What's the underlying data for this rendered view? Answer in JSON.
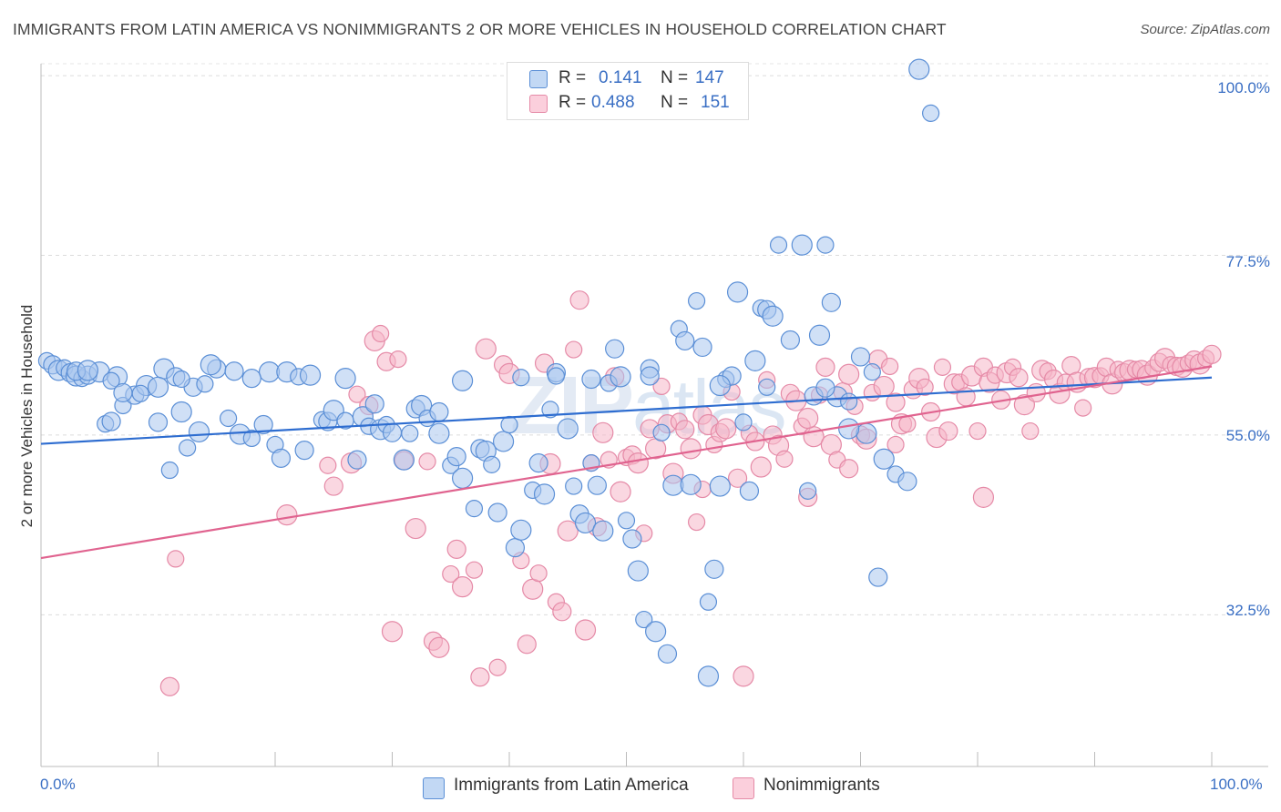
{
  "title": "IMMIGRANTS FROM LATIN AMERICA VS NONIMMIGRANTS 2 OR MORE VEHICLES IN HOUSEHOLD CORRELATION CHART",
  "source": "Source: ZipAtlas.com",
  "watermark": {
    "bold": "ZIP",
    "light": "atlas"
  },
  "stats": [
    {
      "r_label": "R =",
      "r_value": "0.141",
      "n_label": "N =",
      "n_value": "147"
    },
    {
      "r_label": "R =",
      "r_value": "0.488",
      "n_label": "N =",
      "n_value": "151"
    }
  ],
  "colors": {
    "blue_fill": "#a9c7ef",
    "blue_stroke": "#5b8fd6",
    "blue_line": "#2e6dd0",
    "pink_fill": "#f6b6c9",
    "pink_stroke": "#e58aa7",
    "pink_line": "#e0638f",
    "tick_text": "#3a6fc4"
  },
  "chart_data": {
    "type": "scatter",
    "title": "IMMIGRANTS FROM LATIN AMERICA VS NONIMMIGRANTS 2 OR MORE VEHICLES IN HOUSEHOLD CORRELATION CHART",
    "xlabel": "",
    "ylabel": "2 or more Vehicles in Household",
    "xlim": [
      0,
      100
    ],
    "ylim": [
      13.5,
      101.5
    ],
    "x_tick_labels": [
      "0.0%",
      "100.0%"
    ],
    "y_ticks": [
      32.5,
      55.0,
      77.5,
      100.0
    ],
    "y_tick_labels": [
      "32.5%",
      "55.0%",
      "77.5%",
      "100.0%"
    ],
    "grid": "horizontal dashed",
    "legend_position": "bottom-center",
    "series": [
      {
        "name": "Immigrants from Latin America",
        "r": 0.141,
        "n": 147,
        "trend": [
          [
            0,
            53.9
          ],
          [
            100,
            62.2
          ]
        ],
        "points": [
          [
            0.5,
            64.3
          ],
          [
            1,
            63.8
          ],
          [
            1.5,
            63.1
          ],
          [
            2,
            63.4
          ],
          [
            2.5,
            62.8
          ],
          [
            3,
            62.4
          ],
          [
            3.5,
            62.1
          ],
          [
            4,
            62.5
          ],
          [
            5,
            62.9
          ],
          [
            5.5,
            56.4
          ],
          [
            6,
            56.7
          ],
          [
            6.5,
            62.3
          ],
          [
            7,
            58.7
          ],
          [
            8,
            60.0
          ],
          [
            9,
            61.2
          ],
          [
            8.5,
            60.2
          ],
          [
            10,
            56.6
          ],
          [
            10.5,
            63.3
          ],
          [
            11,
            50.6
          ],
          [
            11.5,
            62.3
          ],
          [
            12,
            57.9
          ],
          [
            12.5,
            53.4
          ],
          [
            13,
            61.0
          ],
          [
            13.5,
            55.4
          ],
          [
            14,
            61.4
          ],
          [
            15,
            63.3
          ],
          [
            14.5,
            63.8
          ],
          [
            16,
            57.1
          ],
          [
            16.5,
            63.0
          ],
          [
            17,
            55.1
          ],
          [
            18,
            54.6
          ],
          [
            19,
            56.3
          ],
          [
            19.5,
            62.9
          ],
          [
            20,
            53.8
          ],
          [
            20.5,
            52.1
          ],
          [
            21,
            62.9
          ],
          [
            22,
            62.3
          ],
          [
            22.5,
            53.1
          ],
          [
            23,
            62.5
          ],
          [
            24,
            56.9
          ],
          [
            24.5,
            56.7
          ],
          [
            25,
            58.1
          ],
          [
            26,
            56.8
          ],
          [
            27,
            51.9
          ],
          [
            27.5,
            57.3
          ],
          [
            28,
            56.1
          ],
          [
            28.5,
            58.9
          ],
          [
            29,
            55.7
          ],
          [
            29.5,
            56.3
          ],
          [
            30,
            55.3
          ],
          [
            31,
            51.9
          ],
          [
            31.5,
            55.2
          ],
          [
            32,
            58.3
          ],
          [
            32.5,
            58.7
          ],
          [
            33,
            57.1
          ],
          [
            34,
            57.9
          ],
          [
            34,
            55.2
          ],
          [
            35,
            51.2
          ],
          [
            35.5,
            52.3
          ],
          [
            36,
            49.6
          ],
          [
            37,
            45.8
          ],
          [
            37.5,
            53.3
          ],
          [
            38,
            53.0
          ],
          [
            38.5,
            51.3
          ],
          [
            39,
            45.3
          ],
          [
            39.5,
            54.2
          ],
          [
            40,
            56.3
          ],
          [
            40.5,
            40.9
          ],
          [
            41,
            43.1
          ],
          [
            42,
            48.1
          ],
          [
            42.5,
            51.5
          ],
          [
            43,
            47.6
          ],
          [
            43.5,
            58.2
          ],
          [
            44,
            62.8
          ],
          [
            45,
            55.8
          ],
          [
            45.5,
            48.6
          ],
          [
            46,
            45.1
          ],
          [
            46.5,
            44.0
          ],
          [
            47,
            51.5
          ],
          [
            47.5,
            48.7
          ],
          [
            48,
            43.0
          ],
          [
            48.5,
            61.5
          ],
          [
            49,
            65.8
          ],
          [
            49.5,
            62.3
          ],
          [
            50,
            44.3
          ],
          [
            50.5,
            42.0
          ],
          [
            51,
            38.0
          ],
          [
            51.5,
            31.9
          ],
          [
            52,
            63.3
          ],
          [
            52.5,
            30.4
          ],
          [
            53,
            55.3
          ],
          [
            53.5,
            27.6
          ],
          [
            54,
            48.7
          ],
          [
            54.5,
            68.3
          ],
          [
            55,
            66.8
          ],
          [
            55.5,
            48.8
          ],
          [
            56,
            71.8
          ],
          [
            56.5,
            66.0
          ],
          [
            57,
            24.8
          ],
          [
            57,
            34.1
          ],
          [
            57.5,
            38.2
          ],
          [
            58,
            48.6
          ],
          [
            58.5,
            62.0
          ],
          [
            59,
            62.4
          ],
          [
            59.5,
            72.9
          ],
          [
            60,
            56.6
          ],
          [
            60.5,
            48.0
          ],
          [
            61,
            64.3
          ],
          [
            61.5,
            70.9
          ],
          [
            62,
            70.7
          ],
          [
            62.5,
            69.9
          ],
          [
            63,
            78.8
          ],
          [
            64,
            66.9
          ],
          [
            65,
            78.8
          ],
          [
            65.5,
            48.0
          ],
          [
            66,
            59.9
          ],
          [
            66.5,
            67.5
          ],
          [
            67,
            78.8
          ],
          [
            67.5,
            71.6
          ],
          [
            68,
            59.8
          ],
          [
            69,
            59.2
          ],
          [
            70,
            64.8
          ],
          [
            70.5,
            55.2
          ],
          [
            71,
            62.9
          ],
          [
            71.5,
            37.2
          ],
          [
            72,
            52.0
          ],
          [
            73,
            50.1
          ],
          [
            74,
            49.2
          ],
          [
            75,
            100.8
          ],
          [
            76,
            95.3
          ],
          [
            3,
            63.0
          ],
          [
            4,
            63.1
          ],
          [
            6,
            61.8
          ],
          [
            7,
            60.3
          ],
          [
            10,
            61.0
          ],
          [
            12,
            62.0
          ],
          [
            18,
            62.1
          ],
          [
            26,
            62.1
          ],
          [
            44,
            62.4
          ],
          [
            52,
            62.4
          ],
          [
            58,
            61.2
          ],
          [
            62,
            61.0
          ],
          [
            67,
            60.9
          ],
          [
            69,
            55.8
          ],
          [
            41,
            62.2
          ],
          [
            47,
            62.0
          ],
          [
            36,
            61.8
          ]
        ]
      },
      {
        "name": "Nonimmigrants",
        "r": 0.488,
        "n": 151,
        "trend": [
          [
            0,
            39.6
          ],
          [
            100,
            63.6
          ]
        ],
        "points": [
          [
            11.5,
            39.5
          ],
          [
            11,
            23.5
          ],
          [
            21,
            45.0
          ],
          [
            24.5,
            51.2
          ],
          [
            25,
            48.6
          ],
          [
            26.5,
            51.5
          ],
          [
            27,
            60.1
          ],
          [
            28,
            58.7
          ],
          [
            28.5,
            66.8
          ],
          [
            29,
            67.7
          ],
          [
            29.5,
            64.2
          ],
          [
            30,
            30.4
          ],
          [
            30.5,
            64.5
          ],
          [
            31,
            51.8
          ],
          [
            32,
            43.3
          ],
          [
            33,
            51.7
          ],
          [
            33.5,
            29.2
          ],
          [
            34,
            28.4
          ],
          [
            35,
            37.6
          ],
          [
            35.5,
            40.7
          ],
          [
            36,
            36.0
          ],
          [
            37,
            38.1
          ],
          [
            37.5,
            24.7
          ],
          [
            38,
            65.8
          ],
          [
            39,
            25.9
          ],
          [
            39.5,
            63.8
          ],
          [
            40,
            62.7
          ],
          [
            41,
            39.3
          ],
          [
            41.5,
            28.8
          ],
          [
            42,
            35.7
          ],
          [
            42.5,
            37.7
          ],
          [
            43,
            64.0
          ],
          [
            43.5,
            51.4
          ],
          [
            44,
            34.1
          ],
          [
            44.5,
            32.9
          ],
          [
            45,
            43.0
          ],
          [
            45.5,
            65.7
          ],
          [
            46,
            71.9
          ],
          [
            46.5,
            30.6
          ],
          [
            47,
            51.5
          ],
          [
            47.5,
            43.5
          ],
          [
            48,
            55.3
          ],
          [
            48.5,
            51.9
          ],
          [
            49,
            62.3
          ],
          [
            49.5,
            47.9
          ],
          [
            50,
            52.2
          ],
          [
            50.5,
            52.5
          ],
          [
            51,
            51.5
          ],
          [
            51.5,
            42.7
          ],
          [
            52,
            55.8
          ],
          [
            52.5,
            53.3
          ],
          [
            53,
            61.1
          ],
          [
            53.5,
            56.4
          ],
          [
            54,
            50.2
          ],
          [
            54.5,
            56.7
          ],
          [
            55,
            55.7
          ],
          [
            55.5,
            53.3
          ],
          [
            56,
            44.1
          ],
          [
            56.5,
            57.5
          ],
          [
            57,
            56.3
          ],
          [
            57.5,
            53.8
          ],
          [
            58,
            55.3
          ],
          [
            58.5,
            55.8
          ],
          [
            59,
            60.4
          ],
          [
            59.5,
            49.6
          ],
          [
            60,
            24.8
          ],
          [
            60.5,
            55.2
          ],
          [
            61,
            54.2
          ],
          [
            61.5,
            51.0
          ],
          [
            62,
            61.9
          ],
          [
            62.5,
            55.0
          ],
          [
            63,
            53.7
          ],
          [
            63.5,
            52.0
          ],
          [
            64,
            60.2
          ],
          [
            64.5,
            59.3
          ],
          [
            65,
            56.1
          ],
          [
            65.5,
            47.2
          ],
          [
            66,
            54.8
          ],
          [
            66.5,
            60.0
          ],
          [
            67,
            63.5
          ],
          [
            67.5,
            53.8
          ],
          [
            68,
            51.9
          ],
          [
            68.5,
            60.4
          ],
          [
            69,
            62.6
          ],
          [
            69.5,
            58.6
          ],
          [
            70,
            55.0
          ],
          [
            70.5,
            54.5
          ],
          [
            71,
            60.3
          ],
          [
            71.5,
            64.5
          ],
          [
            72,
            61.1
          ],
          [
            72.5,
            63.6
          ],
          [
            73,
            59.1
          ],
          [
            73.5,
            56.4
          ],
          [
            74,
            56.4
          ],
          [
            74.5,
            60.7
          ],
          [
            75,
            62.1
          ],
          [
            75.5,
            61.0
          ],
          [
            76,
            57.9
          ],
          [
            76.5,
            54.7
          ],
          [
            77,
            63.5
          ],
          [
            77.5,
            55.5
          ],
          [
            78,
            61.4
          ],
          [
            78.5,
            61.6
          ],
          [
            79,
            59.8
          ],
          [
            79.5,
            62.4
          ],
          [
            80,
            55.5
          ],
          [
            80.5,
            63.5
          ],
          [
            81,
            61.6
          ],
          [
            81.5,
            62.5
          ],
          [
            82,
            59.4
          ],
          [
            82.5,
            62.8
          ],
          [
            83,
            63.5
          ],
          [
            83.5,
            62.2
          ],
          [
            84,
            58.8
          ],
          [
            84.5,
            55.5
          ],
          [
            85,
            60.3
          ],
          [
            85.5,
            63.1
          ],
          [
            86,
            63.0
          ],
          [
            86.5,
            62.0
          ],
          [
            87,
            60.2
          ],
          [
            87.5,
            61.6
          ],
          [
            88,
            63.7
          ],
          [
            88.5,
            61.6
          ],
          [
            89,
            58.4
          ],
          [
            89.5,
            62.2
          ],
          [
            90,
            62.2
          ],
          [
            90.5,
            62.4
          ],
          [
            91,
            63.5
          ],
          [
            91.5,
            61.4
          ],
          [
            92,
            63.2
          ],
          [
            92.5,
            62.8
          ],
          [
            93,
            63.1
          ],
          [
            93.5,
            63.2
          ],
          [
            94,
            63.2
          ],
          [
            94.5,
            62.5
          ],
          [
            95,
            63.4
          ],
          [
            95.5,
            64.1
          ],
          [
            96,
            64.6
          ],
          [
            96.5,
            63.8
          ],
          [
            97,
            63.6
          ],
          [
            97.5,
            63.5
          ],
          [
            98,
            64.0
          ],
          [
            98.5,
            64.4
          ],
          [
            99,
            63.9
          ],
          [
            99.5,
            64.6
          ],
          [
            100,
            65.1
          ],
          [
            80.5,
            47.2
          ],
          [
            73,
            53.8
          ],
          [
            69,
            50.8
          ],
          [
            65.5,
            57.1
          ],
          [
            56.5,
            48.2
          ]
        ]
      }
    ]
  }
}
